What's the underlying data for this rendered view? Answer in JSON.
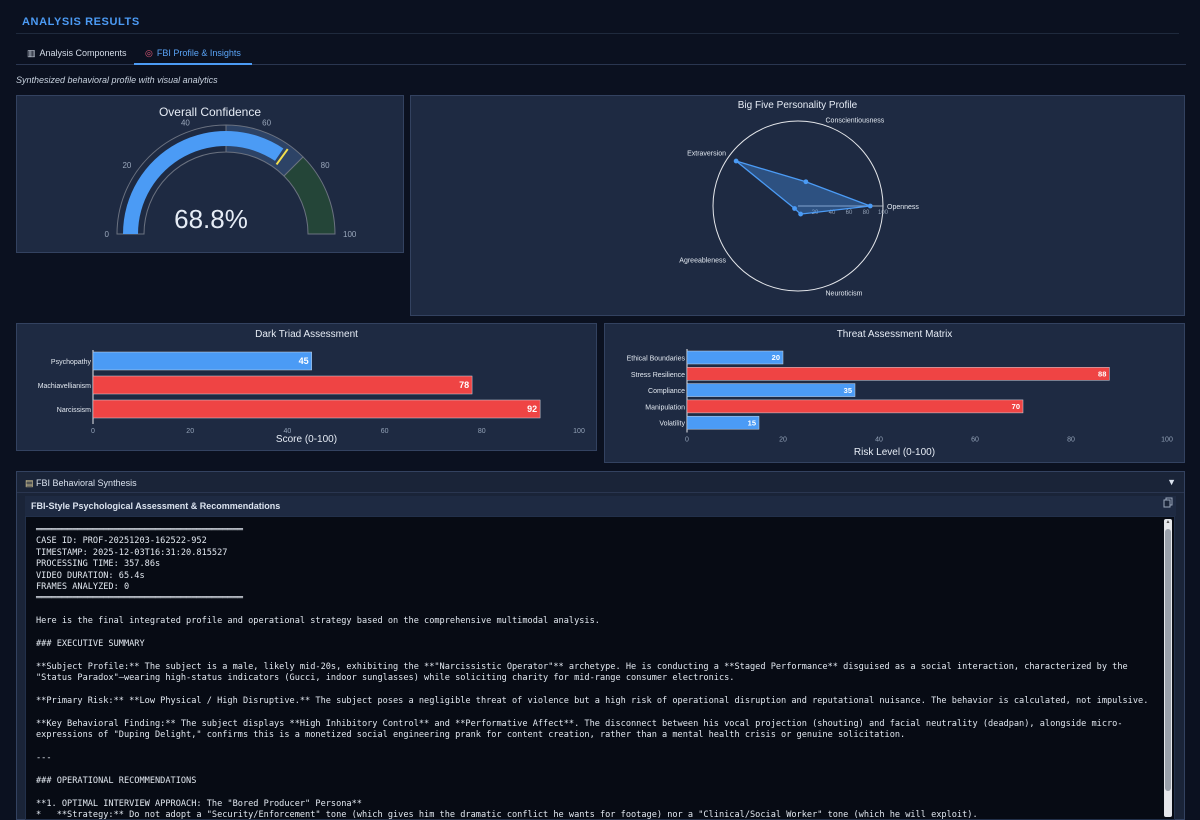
{
  "header": {
    "title": "ANALYSIS RESULTS"
  },
  "tabs": [
    {
      "label": "Analysis Components",
      "icon": "bar-chart-icon"
    },
    {
      "label": "FBI Profile & Insights",
      "icon": "target-icon",
      "active": true
    }
  ],
  "subtitle": "Synthesized behavioral profile with visual analytics",
  "gauge": {
    "title": "Overall Confidence",
    "value": 68.8,
    "display": "68.8%",
    "ticks": [
      "0",
      "20",
      "40",
      "60",
      "80",
      "100"
    ],
    "threshold": 70,
    "colors": {
      "bar": "#4b9bf5",
      "mid": "#2d4366",
      "high": "#244538",
      "threshold": "#f4e04d"
    }
  },
  "chart_data": [
    {
      "type": "radar",
      "title": "Big Five Personality Profile",
      "categories": [
        "Openness",
        "Conscientiousness",
        "Extraversion",
        "Agreeableness",
        "Neuroticism"
      ],
      "values": [
        85,
        30,
        90,
        5,
        10
      ],
      "radial_ticks": [
        "20",
        "40",
        "60",
        "80",
        "100"
      ],
      "range": [
        0,
        100
      ],
      "color": "#4b9bf5"
    },
    {
      "type": "bar",
      "orientation": "horizontal",
      "title": "Dark Triad Assessment",
      "categories": [
        "Psychopathy",
        "Machiavellianism",
        "Narcissism"
      ],
      "values": [
        45,
        78,
        92
      ],
      "colors": [
        "#4b9bf5",
        "#ef4444",
        "#ef4444"
      ],
      "xlabel": "Score (0-100)",
      "xlim": [
        0,
        100
      ],
      "xticks": [
        "0",
        "20",
        "40",
        "60",
        "80",
        "100"
      ]
    },
    {
      "type": "bar",
      "orientation": "horizontal",
      "title": "Threat Assessment Matrix",
      "categories": [
        "Ethical Boundaries",
        "Stress Resilience",
        "Compliance",
        "Manipulation",
        "Volatility"
      ],
      "values": [
        20,
        88,
        35,
        70,
        15
      ],
      "colors": [
        "#4b9bf5",
        "#ef4444",
        "#4b9bf5",
        "#ef4444",
        "#4b9bf5"
      ],
      "xlabel": "Risk Level (0-100)",
      "xlim": [
        0,
        100
      ],
      "xticks": [
        "0",
        "20",
        "40",
        "60",
        "80",
        "100"
      ]
    }
  ],
  "synthesis": {
    "header": "FBI Behavioral Synthesis",
    "header_icon": "clipboard-icon",
    "card_title": "FBI-Style Psychological Assessment & Recommendations",
    "report": "════════════════════════════════════════\nCASE ID: PROF-20251203-162522-952\nTIMESTAMP: 2025-12-03T16:31:20.815527\nPROCESSING TIME: 357.86s\nVIDEO DURATION: 65.4s\nFRAMES ANALYZED: 0\n════════════════════════════════════════\n\nHere is the final integrated profile and operational strategy based on the comprehensive multimodal analysis.\n\n### EXECUTIVE SUMMARY\n\n**Subject Profile:** The subject is a male, likely mid-20s, exhibiting the **\"Narcissistic Operator\"** archetype. He is conducting a **Staged Performance** disguised as a social interaction, characterized by the \"Status Paradox\"—wearing high-status indicators (Gucci, indoor sunglasses) while soliciting charity for mid-range consumer electronics.\n\n**Primary Risk:** **Low Physical / High Disruptive.** The subject poses a negligible threat of violence but a high risk of operational disruption and reputational nuisance. The behavior is calculated, not impulsive.\n\n**Key Behavioral Finding:** The subject displays **High Inhibitory Control** and **Performative Affect**. The disconnect between his vocal projection (shouting) and facial neutrality (deadpan), alongside micro-expressions of \"Duping Delight,\" confirms this is a monetized social engineering prank for content creation, rather than a mental health crisis or genuine solicitation.\n\n---\n\n### OPERATIONAL RECOMMENDATIONS\n\n**1. OPTIMAL INTERVIEW APPROACH: The \"Bored Producer\" Persona**\n*   **Strategy:** Do not adopt a \"Security/Enforcement\" tone (which gives him the dramatic conflict he wants for footage) nor a \"Clinical/Social Worker\" tone (which he will exploit)."
  }
}
